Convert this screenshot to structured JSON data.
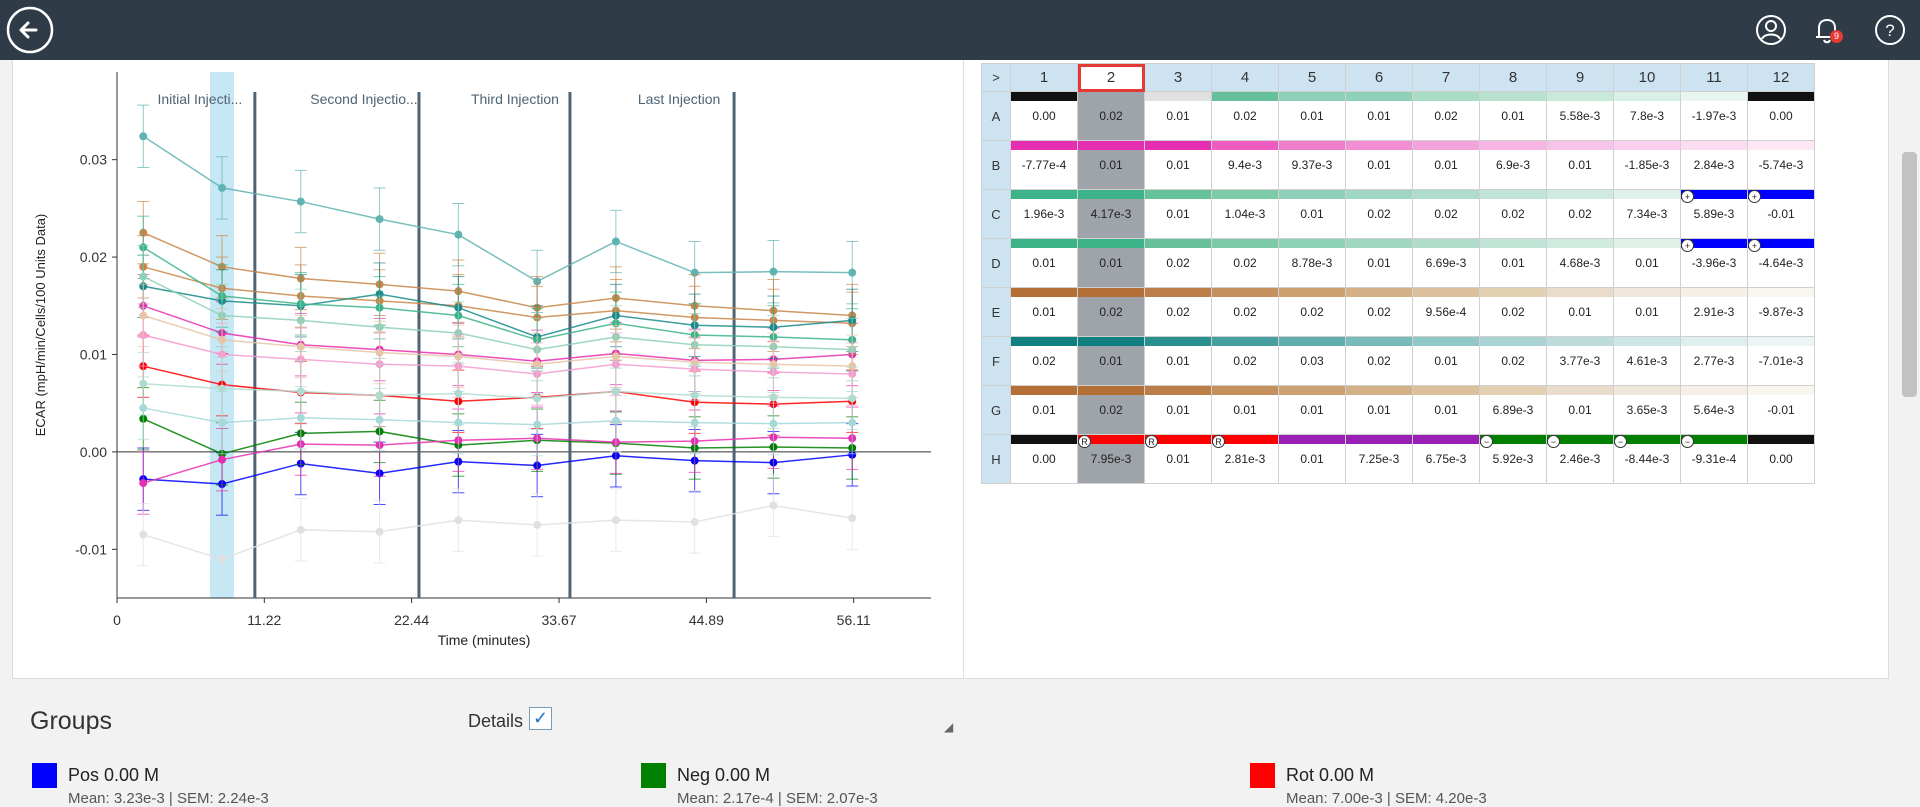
{
  "topbar": {
    "back_icon": "arrow-left-icon",
    "user_icon": "user-icon",
    "bell_icon": "bell-icon",
    "notification_count": "9",
    "help_icon": "question-icon"
  },
  "chart_data": {
    "type": "line",
    "ylabel": "ECAR (mpH/min/Cells/100 Units Data)",
    "xlabel": "Time (minutes)",
    "x_ticks": [
      "0",
      "11.22",
      "22.44",
      "33.67",
      "44.89",
      "56.11"
    ],
    "y_ticks": [
      "0.03",
      "0.02",
      "0.01",
      "0.00",
      "-0.01"
    ],
    "ylim": [
      -0.015,
      0.039
    ],
    "xlim": [
      0,
      62
    ],
    "x": [
      2,
      8,
      14,
      20,
      26,
      32,
      38,
      44,
      50,
      56
    ],
    "injections": [
      {
        "label": "Initial Injecti...",
        "x": 10.5
      },
      {
        "label": "Second Injectio...",
        "x": 23
      },
      {
        "label": "Third Injection",
        "x": 34.5
      },
      {
        "label": "Last Injection",
        "x": 47
      }
    ],
    "highlight_x": 8,
    "series": [
      {
        "color": "#5fb3b3",
        "values": [
          0.0324,
          0.0271,
          0.0257,
          0.0239,
          0.0223,
          0.0175,
          0.0216,
          0.0184,
          0.0185,
          0.0184
        ]
      },
      {
        "color": "#0000ff",
        "values": [
          -0.0028,
          -0.0033,
          -0.0012,
          -0.0022,
          -0.001,
          -0.0014,
          -0.0004,
          -0.0009,
          -0.0011,
          -0.0003
        ]
      },
      {
        "color": "#008000",
        "values": [
          0.0034,
          -0.0002,
          0.0019,
          0.0021,
          0.0007,
          0.0012,
          0.0009,
          0.0004,
          0.0005,
          0.0004
        ]
      },
      {
        "color": "#ff0000",
        "values": [
          0.0088,
          0.0069,
          0.0061,
          0.0058,
          0.0052,
          0.0056,
          0.0062,
          0.0051,
          0.0049,
          0.0052
        ]
      },
      {
        "color": "#e62fb0",
        "values": [
          -0.0032,
          -0.0008,
          0.0008,
          0.0007,
          0.0012,
          0.0014,
          0.001,
          0.0011,
          0.0015,
          0.0014
        ]
      },
      {
        "color": "#e62fb0",
        "values": [
          0.015,
          0.0122,
          0.011,
          0.0105,
          0.01,
          0.0093,
          0.0101,
          0.0094,
          0.0095,
          0.01
        ]
      },
      {
        "color": "#c8864a",
        "values": [
          0.0225,
          0.019,
          0.0178,
          0.0172,
          0.0165,
          0.0148,
          0.0158,
          0.015,
          0.0145,
          0.014
        ]
      },
      {
        "color": "#c8864a",
        "values": [
          0.019,
          0.0168,
          0.016,
          0.0155,
          0.015,
          0.0138,
          0.0145,
          0.0138,
          0.0135,
          0.0132
        ]
      },
      {
        "color": "#1a8a8a",
        "values": [
          0.017,
          0.0155,
          0.015,
          0.0162,
          0.0148,
          0.0118,
          0.014,
          0.013,
          0.0128,
          0.0135
        ]
      },
      {
        "color": "#3cb389",
        "values": [
          0.021,
          0.016,
          0.0152,
          0.0148,
          0.014,
          0.0115,
          0.0132,
          0.012,
          0.0118,
          0.0115
        ]
      },
      {
        "color": "#8fd0b8",
        "values": [
          0.018,
          0.014,
          0.0135,
          0.0128,
          0.0122,
          0.0105,
          0.0118,
          0.011,
          0.0108,
          0.0105
        ]
      },
      {
        "color": "#f59bd0",
        "values": [
          0.012,
          0.01,
          0.0095,
          0.009,
          0.0088,
          0.008,
          0.009,
          0.0085,
          0.0082,
          0.008
        ]
      },
      {
        "color": "#e8c4a8",
        "values": [
          0.014,
          0.0115,
          0.0108,
          0.0102,
          0.0098,
          0.009,
          0.0098,
          0.0092,
          0.009,
          0.0088
        ]
      },
      {
        "color": "#b0dcd0",
        "values": [
          0.007,
          0.0065,
          0.0062,
          0.0058,
          0.006,
          0.0055,
          0.0062,
          0.0058,
          0.0056,
          0.0055
        ]
      },
      {
        "color": "#e0e0e0",
        "values": [
          -0.0085,
          -0.011,
          -0.008,
          -0.0082,
          -0.007,
          -0.0075,
          -0.007,
          -0.0072,
          -0.0055,
          -0.0068
        ]
      },
      {
        "color": "#a6d8d8",
        "values": [
          0.0045,
          0.003,
          0.0035,
          0.0033,
          0.003,
          0.0028,
          0.0032,
          0.003,
          0.0029,
          0.003
        ]
      }
    ]
  },
  "plate": {
    "corner_label": ">",
    "columns": [
      "1",
      "2",
      "3",
      "4",
      "5",
      "6",
      "7",
      "8",
      "9",
      "10",
      "11",
      "12"
    ],
    "selected_col": 1,
    "rows": [
      {
        "label": "A",
        "values": [
          "0.00",
          "0.02",
          "0.01",
          "0.02",
          "0.01",
          "0.01",
          "0.02",
          "0.01",
          "5.58e-3",
          "7.8e-3",
          "-1.97e-3",
          "0.00"
        ],
        "colors": [
          "#111111",
          "#9ea4aa",
          "#e0e0e0",
          "#66c19a",
          "#8fd0b8",
          "#8fd0b8",
          "#a8dcc4",
          "#b8e2cf",
          "#c8e9da",
          "#d8f0e6",
          "#e8f6f0",
          "#111111"
        ]
      },
      {
        "label": "B",
        "values": [
          "-7.77e-4",
          "0.01",
          "0.01",
          "9.4e-3",
          "9.37e-3",
          "0.01",
          "0.01",
          "6.9e-3",
          "0.01",
          "-1.85e-3",
          "2.84e-3",
          "-5.74e-3"
        ],
        "colors": [
          "#e62fb0",
          "#e62fb0",
          "#e62fb0",
          "#ee5cc2",
          "#f07ccc",
          "#f28ed3",
          "#f5a3dc",
          "#f7b5e3",
          "#f8c3e9",
          "#fad0ee",
          "#fcdcf2",
          "#fde8f6"
        ]
      },
      {
        "label": "C",
        "values": [
          "1.96e-3",
          "4.17e-3",
          "0.01",
          "1.04e-3",
          "0.01",
          "0.02",
          "0.02",
          "0.02",
          "0.02",
          "7.34e-3",
          "5.89e-3",
          "-0.01"
        ],
        "colors": [
          "#3cb389",
          "#3cb389",
          "#66c19a",
          "#7ccaa8",
          "#8fd0b8",
          "#a0d7c2",
          "#b0ddcb",
          "#c0e4d5",
          "#cfeade",
          "#dff1e8",
          "#0000ff",
          "#0000ff"
        ]
      },
      {
        "label": "D",
        "values": [
          "0.01",
          "0.01",
          "0.02",
          "0.02",
          "8.78e-3",
          "0.01",
          "6.69e-3",
          "0.01",
          "4.68e-3",
          "0.01",
          "-3.96e-3",
          "-4.64e-3"
        ],
        "colors": [
          "#3cb389",
          "#3cb389",
          "#66c19a",
          "#7ccaa8",
          "#8fd0b8",
          "#a0d7c2",
          "#b0ddcb",
          "#c0e4d5",
          "#cfeade",
          "#dff1e8",
          "#0000ff",
          "#0000ff"
        ]
      },
      {
        "label": "E",
        "values": [
          "0.01",
          "0.02",
          "0.02",
          "0.02",
          "0.02",
          "0.02",
          "9.56e-4",
          "0.02",
          "0.01",
          "0.01",
          "2.91e-3",
          "-9.87e-3"
        ],
        "colors": [
          "#b36f35",
          "#b36f35",
          "#bb7e48",
          "#c4905e",
          "#cca071",
          "#d4b086",
          "#dcc09c",
          "#e4d0b3",
          "#eadccb",
          "#f0e7dc",
          "#f5efe7",
          "#f9f5ef"
        ]
      },
      {
        "label": "F",
        "values": [
          "0.02",
          "0.01",
          "0.01",
          "0.02",
          "0.03",
          "0.02",
          "0.01",
          "0.02",
          "3.77e-3",
          "4.61e-3",
          "2.77e-3",
          "-7.01e-3"
        ],
        "colors": [
          "#0f7f7f",
          "#0f7f7f",
          "#2a8f8f",
          "#469f9f",
          "#5fadad",
          "#79baba",
          "#92c7c7",
          "#a9d3d3",
          "#bddddd",
          "#cfe6e6",
          "#dfeeee",
          "#ecf5f5"
        ]
      },
      {
        "label": "G",
        "values": [
          "0.01",
          "0.02",
          "0.01",
          "0.01",
          "0.01",
          "0.01",
          "0.01",
          "6.89e-3",
          "0.01",
          "3.65e-3",
          "5.64e-3",
          "-0.01"
        ],
        "colors": [
          "#b36f35",
          "#b36f35",
          "#bb7e48",
          "#c4905e",
          "#cca071",
          "#d4b086",
          "#dcc09c",
          "#e4d0b3",
          "#eadccb",
          "#f0e7dc",
          "#f5efe7",
          "#f9f5ef"
        ]
      },
      {
        "label": "H",
        "values": [
          "0.00",
          "7.95e-3",
          "0.01",
          "2.81e-3",
          "0.01",
          "7.25e-3",
          "6.75e-3",
          "5.92e-3",
          "2.46e-3",
          "-8.44e-3",
          "-9.31e-4",
          "0.00"
        ],
        "colors": [
          "#111111",
          "#ff0000",
          "#ff0000",
          "#ff0000",
          "#9a1fb5",
          "#9a1fb5",
          "#9a1fb5",
          "#008000",
          "#008000",
          "#008000",
          "#008000",
          "#111111"
        ]
      }
    ],
    "markers": [
      {
        "row": 2,
        "col": 10,
        "symbol": "+"
      },
      {
        "row": 2,
        "col": 11,
        "symbol": "+"
      },
      {
        "row": 3,
        "col": 10,
        "symbol": "+"
      },
      {
        "row": 3,
        "col": 11,
        "symbol": "+"
      },
      {
        "row": 7,
        "col": 1,
        "symbol": "R"
      },
      {
        "row": 7,
        "col": 2,
        "symbol": "R"
      },
      {
        "row": 7,
        "col": 3,
        "symbol": "R"
      },
      {
        "row": 7,
        "col": 7,
        "symbol": "−"
      },
      {
        "row": 7,
        "col": 8,
        "symbol": "−"
      },
      {
        "row": 7,
        "col": 9,
        "symbol": "−"
      },
      {
        "row": 7,
        "col": 10,
        "symbol": "−"
      }
    ]
  },
  "groups": {
    "title": "Groups",
    "details_label": "Details",
    "details_checked": true,
    "items": [
      {
        "label": "Pos 0.00 M",
        "color": "#0000ff",
        "sub": "Mean: 3.23e-3 | SEM: 2.24e-3"
      },
      {
        "label": "Neg 0.00 M",
        "color": "#008000",
        "sub": "Mean: 2.17e-4 | SEM: 2.07e-3"
      },
      {
        "label": "Rot 0.00 M",
        "color": "#ff0000",
        "sub": "Mean: 7.00e-3 | SEM: 4.20e-3"
      }
    ]
  }
}
